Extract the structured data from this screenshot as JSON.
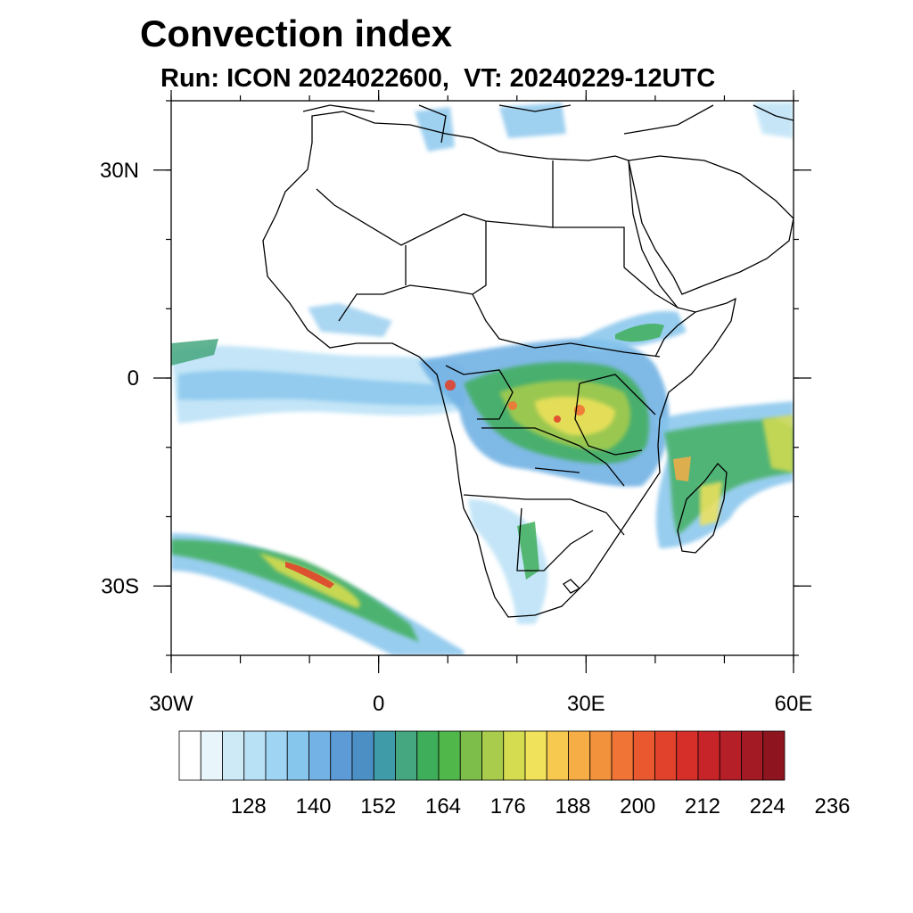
{
  "title": "Convection index",
  "subtitle": "Run: ICON 2024022600,  VT: 20240229-12UTC",
  "map": {
    "projection": "cylindrical equidistant",
    "lon_range": [
      -30,
      60
    ],
    "lat_range": [
      -40,
      40
    ],
    "lat_ticks": [
      {
        "lat": 30,
        "label": "30N"
      },
      {
        "lat": 0,
        "label": "0"
      },
      {
        "lat": -30,
        "label": "30S"
      }
    ],
    "lon_ticks": [
      {
        "lon": -30,
        "label": "30W"
      },
      {
        "lon": 0,
        "label": "0"
      },
      {
        "lon": 30,
        "label": "30E"
      },
      {
        "lon": 60,
        "label": "60E"
      }
    ]
  },
  "colorbar": {
    "labels": [
      "128",
      "140",
      "152",
      "164",
      "176",
      "188",
      "200",
      "212",
      "224",
      "236"
    ],
    "colors": [
      "#ffffff",
      "#e8f5fb",
      "#cfeaf7",
      "#b9e1f6",
      "#9fd5f2",
      "#86c5ec",
      "#72b2e4",
      "#5c9bd6",
      "#4b8fc4",
      "#3f9ba8",
      "#45a77f",
      "#3fae5a",
      "#50b84b",
      "#7dbd4a",
      "#a9cc4c",
      "#d5dc50",
      "#f0e25a",
      "#f7c94f",
      "#f6ad45",
      "#f3923d",
      "#ef7435",
      "#e9582f",
      "#e0422c",
      "#d62f2a",
      "#c72429",
      "#b51f27",
      "#a31a24",
      "#8e1520"
    ]
  }
}
